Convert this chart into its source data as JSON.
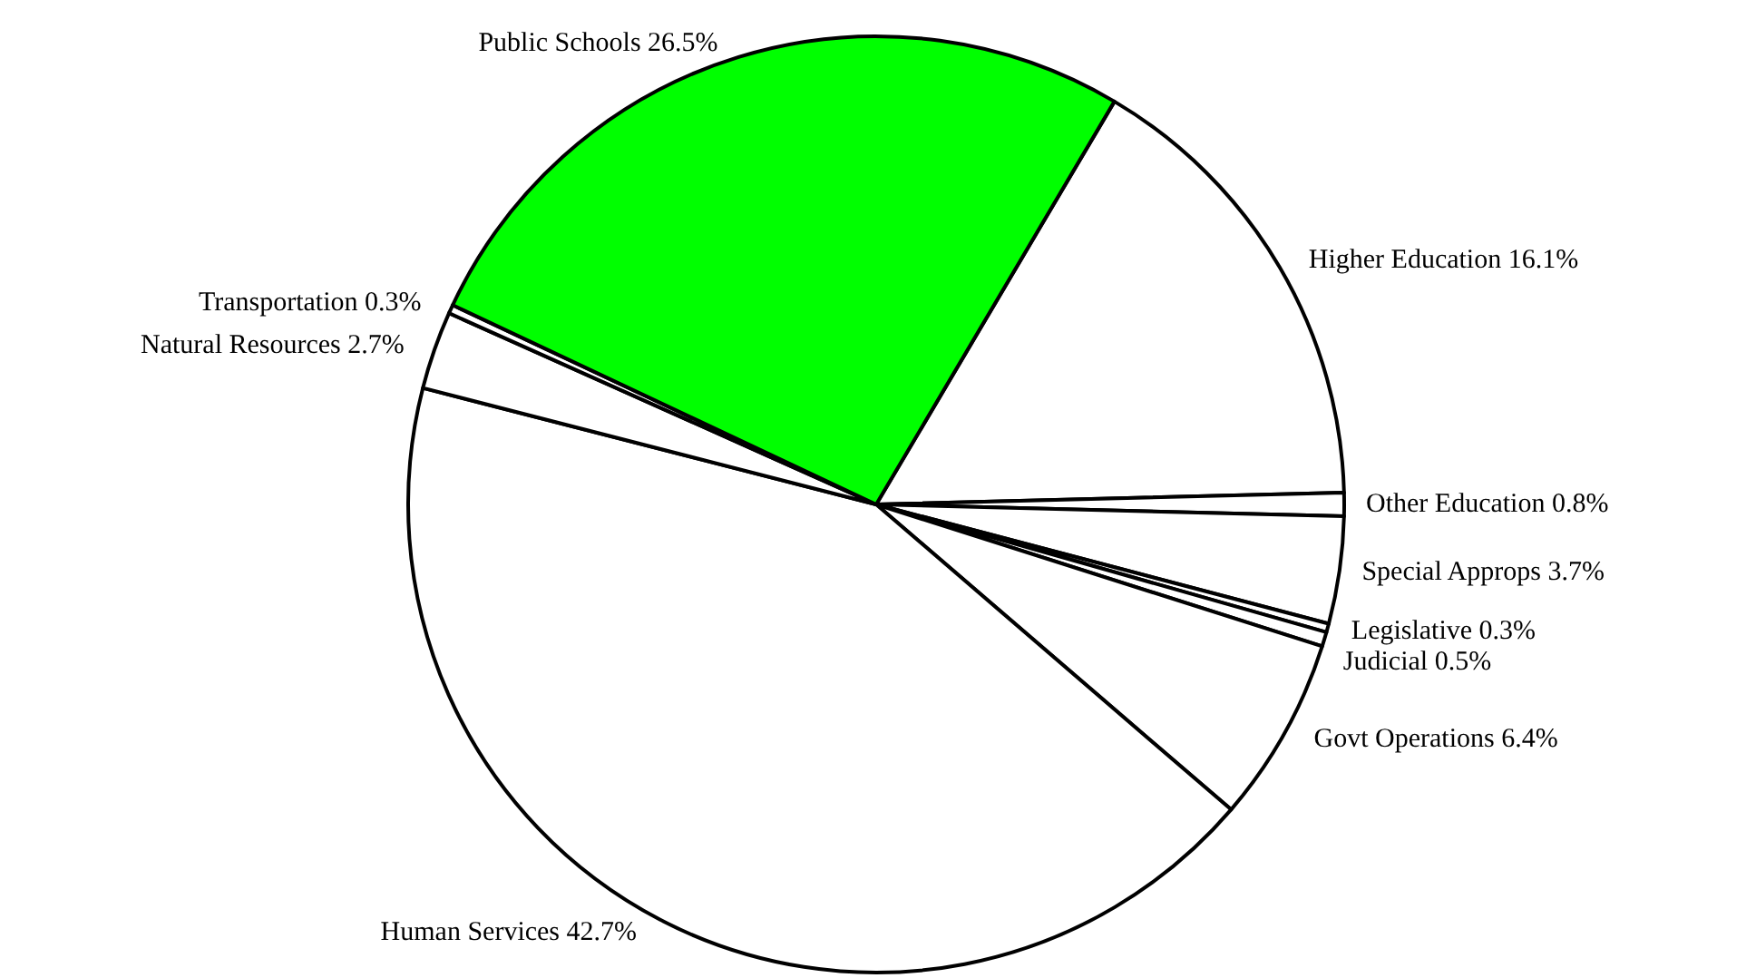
{
  "chart_data": {
    "type": "pie",
    "categories": [
      "Higher Education",
      "Other Education",
      "Special Approps",
      "Legislative",
      "Judicial",
      "Govt Operations",
      "Human Services",
      "Natural Resources",
      "Transportation",
      "Public Schools"
    ],
    "values": [
      16.1,
      0.8,
      3.7,
      0.3,
      0.5,
      6.4,
      42.7,
      2.7,
      0.3,
      26.5
    ],
    "colors": [
      "#ffffff",
      "#ffffff",
      "#ffffff",
      "#ffffff",
      "#ffffff",
      "#ffffff",
      "#ffffff",
      "#ffffff",
      "#ffffff",
      "#00ff00"
    ],
    "value_labels": [
      "16.1%",
      "0.8%",
      "3.7%",
      "0.3%",
      "0.5%",
      "6.4%",
      "42.7%",
      "2.7%",
      "0.3%",
      "26.5%"
    ],
    "legend": false
  }
}
